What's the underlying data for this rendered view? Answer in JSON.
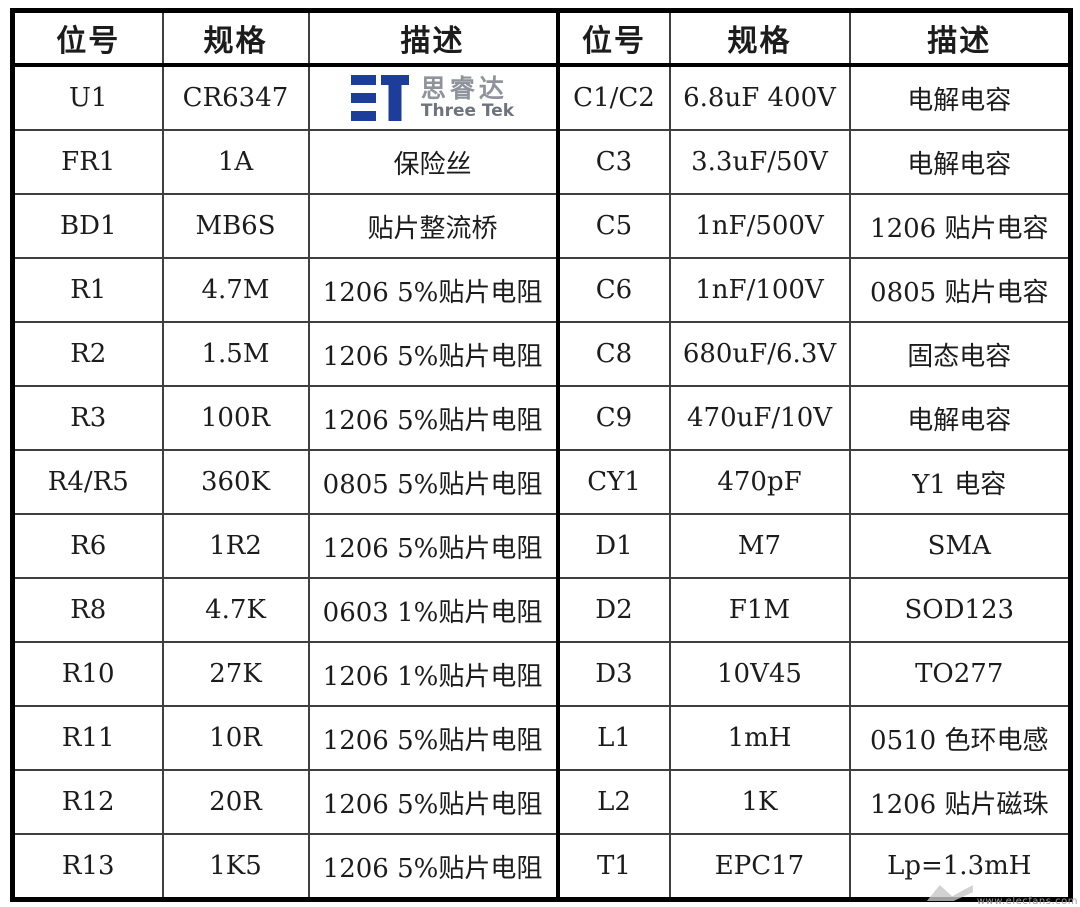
{
  "table": {
    "header": [
      "位号",
      "规格",
      "描述",
      "位号",
      "规格",
      "描述"
    ],
    "rows": [
      [
        "U1",
        "CR6347",
        "",
        "C1/C2",
        "6.8uF 400V",
        "电解电容"
      ],
      [
        "FR1",
        "1A",
        "保险丝",
        "C3",
        "3.3uF/50V",
        "电解电容"
      ],
      [
        "BD1",
        "MB6S",
        "贴片整流桥",
        "C5",
        "1nF/500V",
        "1206 贴片电容"
      ],
      [
        "R1",
        "4.7M",
        "1206 5%贴片电阻",
        "C6",
        "1nF/100V",
        "0805 贴片电容"
      ],
      [
        "R2",
        "1.5M",
        "1206 5%贴片电阻",
        "C8",
        "680uF/6.3V",
        "固态电容"
      ],
      [
        "R3",
        "100R",
        "1206 5%贴片电阻",
        "C9",
        "470uF/10V",
        "电解电容"
      ],
      [
        "R4/R5",
        "360K",
        "0805 5%贴片电阻",
        "CY1",
        "470pF",
        "Y1 电容"
      ],
      [
        "R6",
        "1R2",
        "1206 5%贴片电阻",
        "D1",
        "M7",
        "SMA"
      ],
      [
        "R8",
        "4.7K",
        "0603 1%贴片电阻",
        "D2",
        "F1M",
        "SOD123"
      ],
      [
        "R10",
        "27K",
        "1206 1%贴片电阻",
        "D3",
        "10V45",
        "TO277"
      ],
      [
        "R11",
        "10R",
        "1206 5%贴片电阻",
        "L1",
        "1mH",
        "0510 色环电感"
      ],
      [
        "R12",
        "20R",
        "1206 5%贴片电阻",
        "L2",
        "1K",
        "1206 贴片磁珠"
      ],
      [
        "R13",
        "1K5",
        "1206 5%贴片电阻",
        "T1",
        "EPC17",
        "Lp=1.3mH"
      ]
    ]
  },
  "logo": {
    "name_cn": "思睿达",
    "name_en": "Three Tek",
    "brand_color": "#1c3e9a",
    "gray_light": "#8f949c",
    "gray_dark": "#6e747e"
  },
  "watermark": {
    "text": "www.elecfans.com"
  }
}
